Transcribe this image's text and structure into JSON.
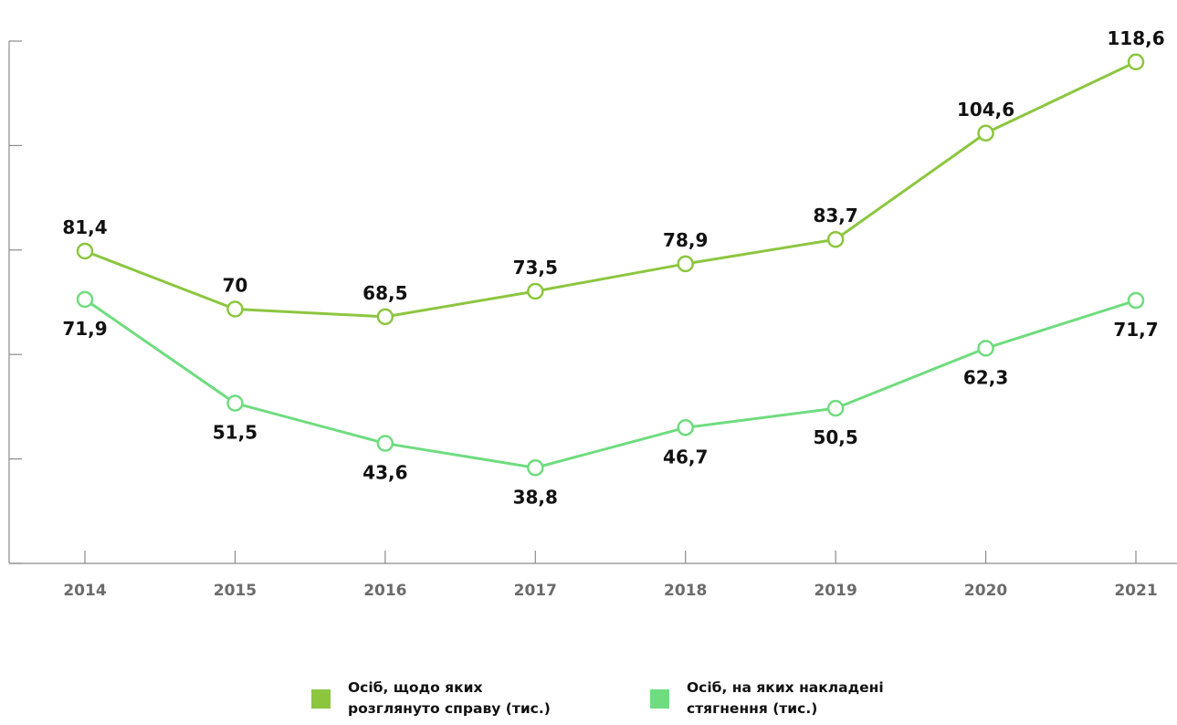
{
  "chart_data": {
    "type": "line",
    "categories": [
      "2014",
      "2015",
      "2016",
      "2017",
      "2018",
      "2019",
      "2020",
      "2021"
    ],
    "series": [
      {
        "name": "Осіб, щодо яких\nрозглянуто справу (тис.)",
        "color": "#8cc63f",
        "values": [
          81.4,
          70,
          68.5,
          73.5,
          78.9,
          83.7,
          104.6,
          118.6
        ],
        "labels": [
          "81,4",
          "70",
          "68,5",
          "73,5",
          "78,9",
          "83,7",
          "104,6",
          "118,6"
        ],
        "label_position": "above"
      },
      {
        "name": "Осіб, на яких накладені\nстягнення (тис.)",
        "color": "#6fdc7f",
        "values": [
          71.9,
          51.5,
          43.6,
          38.8,
          46.7,
          50.5,
          62.3,
          71.7
        ],
        "labels": [
          "71,9",
          "51,5",
          "43,6",
          "38,8",
          "46,7",
          "50,5",
          "62,3",
          "71,7"
        ],
        "label_position": "below"
      }
    ],
    "ylim": [
      20,
      120
    ],
    "grid": false,
    "legend_placement": "bottom-center"
  }
}
